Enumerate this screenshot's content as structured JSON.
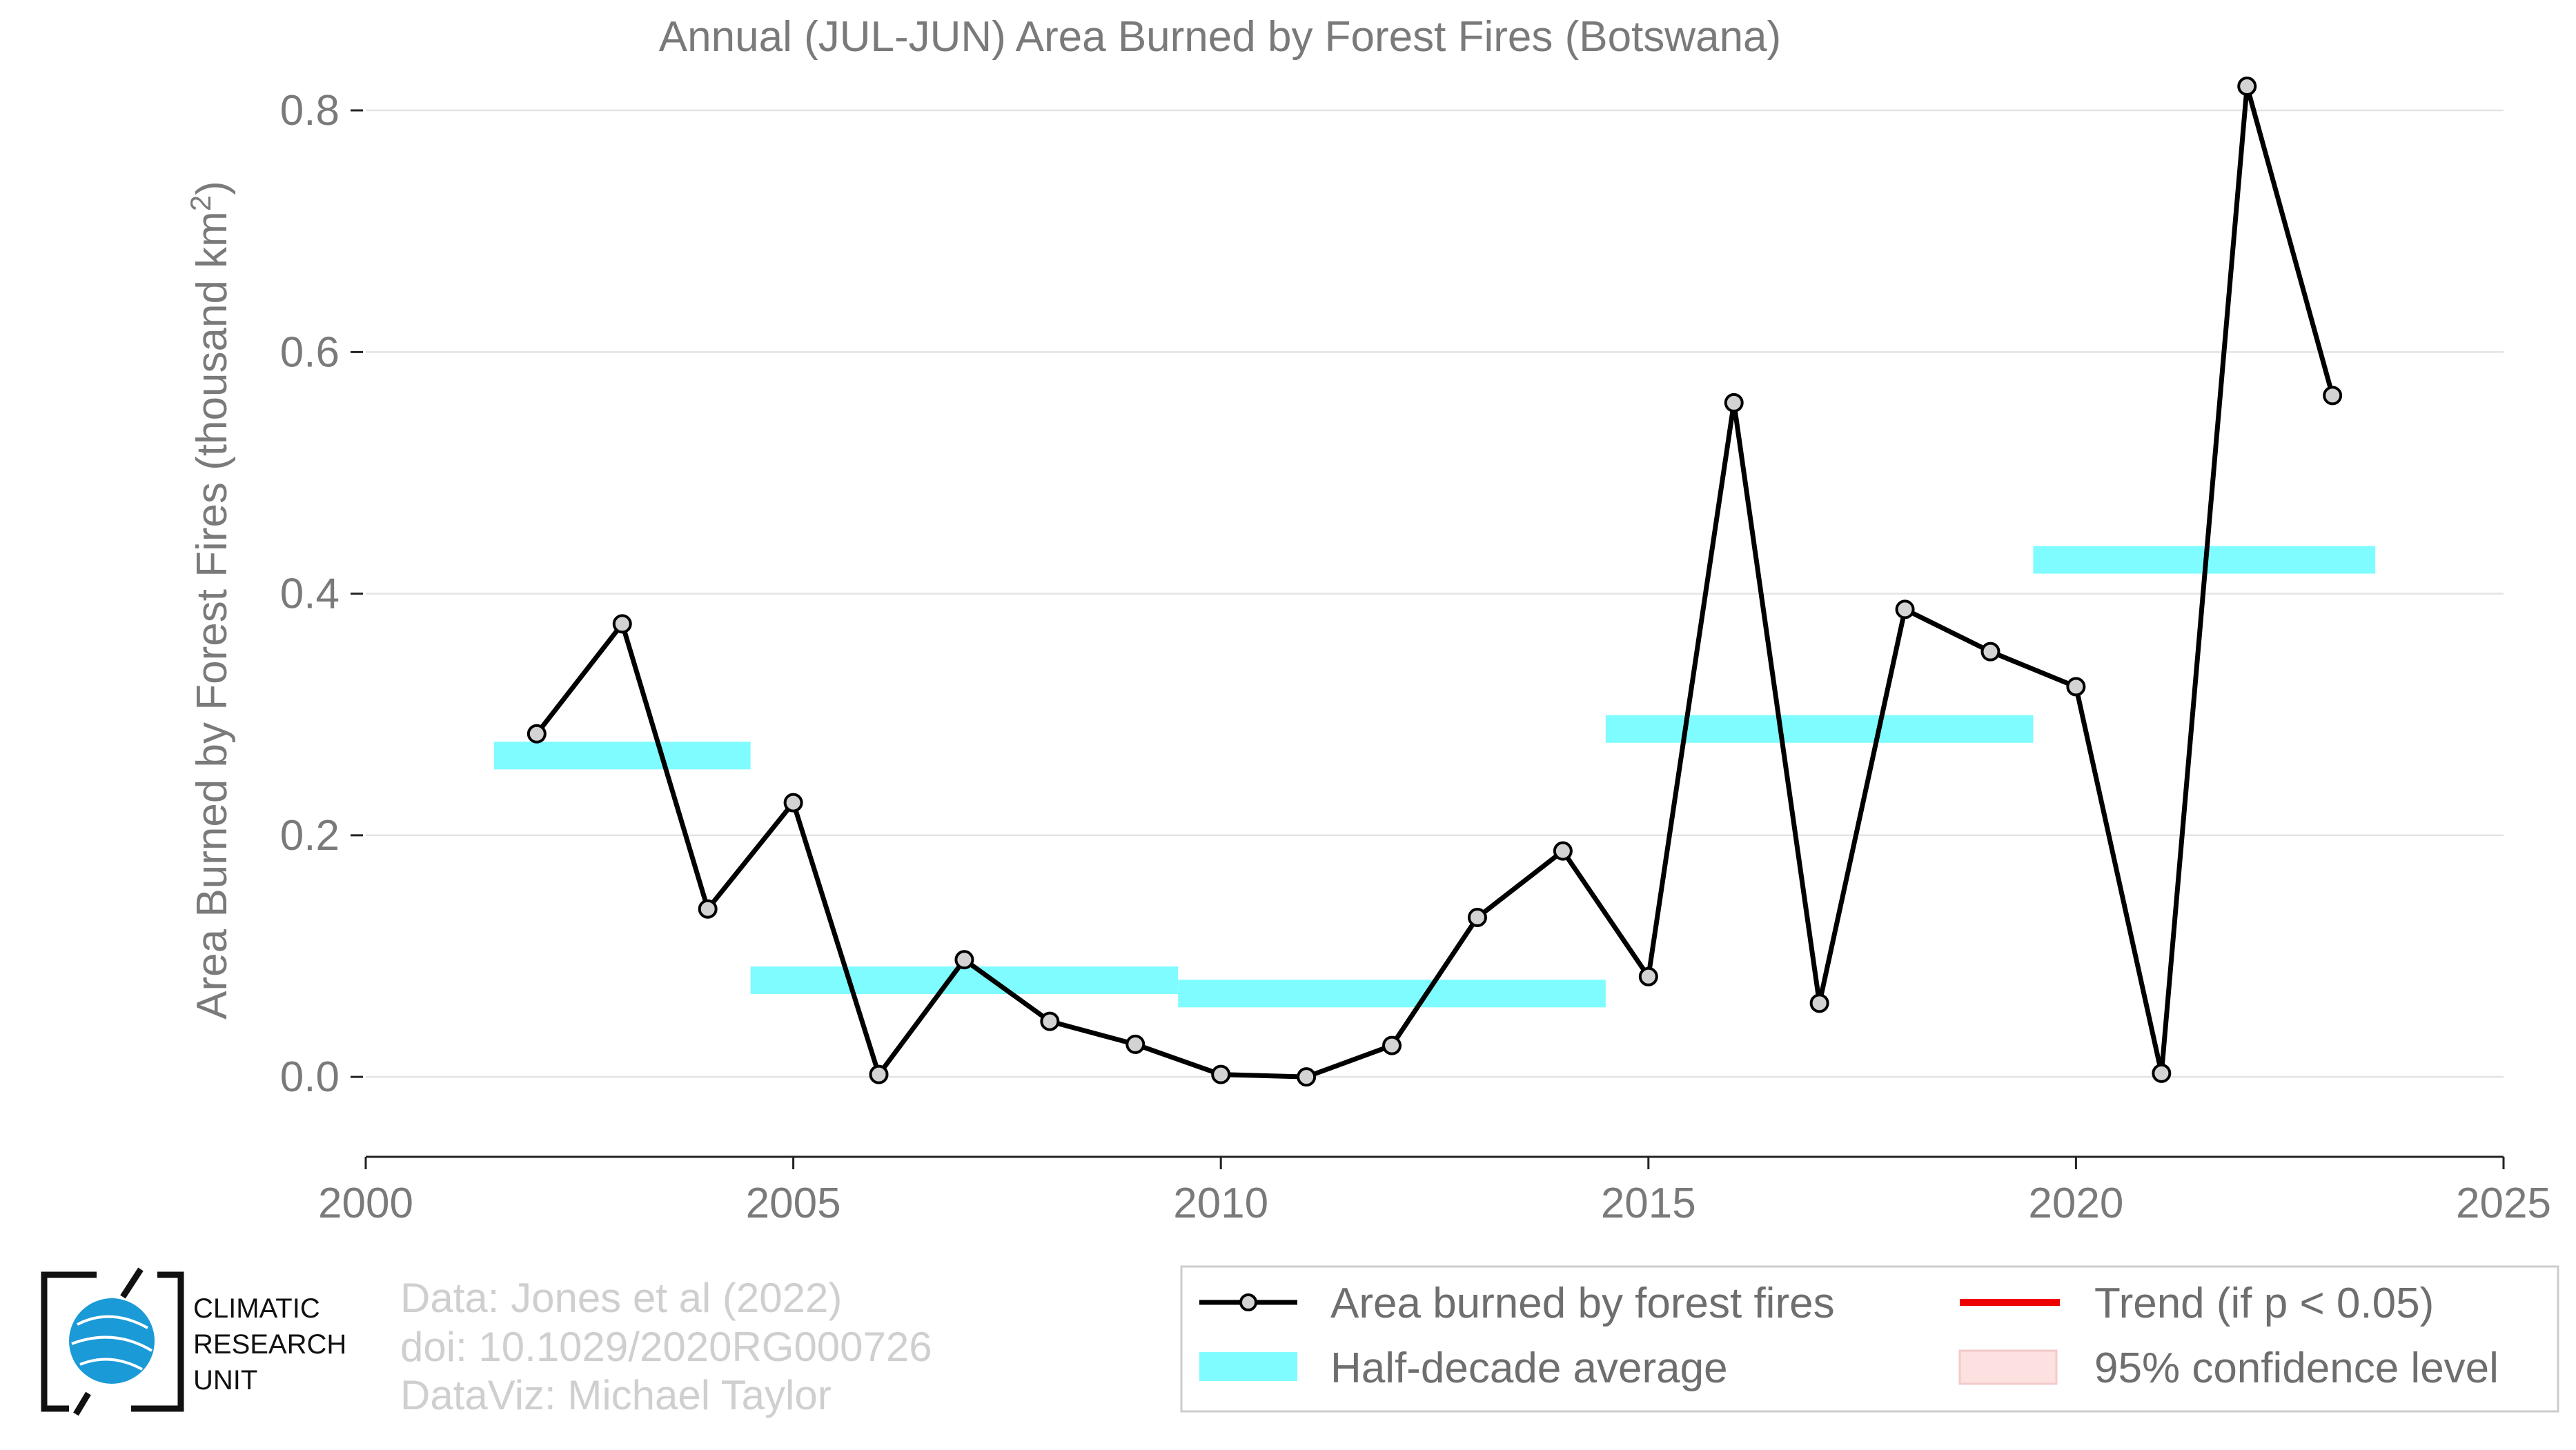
{
  "chart_data": {
    "type": "line",
    "title": "Annual (JUL-JUN) Area Burned by Forest Fires (Botswana)",
    "ylabel": "Area Burned by Forest Fires (thousand km²)",
    "xlabel": "",
    "xlim": [
      2000,
      2025
    ],
    "ylim": [
      -0.065,
      0.84
    ],
    "xticks": [
      2000,
      2005,
      2010,
      2015,
      2020,
      2025
    ],
    "xtick_labels": [
      "2000",
      "2005",
      "2010",
      "2015",
      "2020",
      "2025"
    ],
    "yticks": [
      0.0,
      0.2,
      0.4,
      0.6,
      0.8
    ],
    "ytick_labels": [
      "0.0",
      "0.2",
      "0.4",
      "0.6",
      "0.8"
    ],
    "grid": "horizontal",
    "series": [
      {
        "name": "Area burned by forest fires",
        "color": "#000000",
        "marker_fill": "#d3d3d3",
        "x": [
          2002,
          2003,
          2004,
          2005,
          2006,
          2007,
          2008,
          2009,
          2010,
          2011,
          2012,
          2013,
          2014,
          2015,
          2016,
          2017,
          2018,
          2019,
          2020,
          2021,
          2022,
          2023
        ],
        "y": [
          0.284,
          0.375,
          0.139,
          0.227,
          0.002,
          0.097,
          0.046,
          0.027,
          0.002,
          0.0,
          0.026,
          0.132,
          0.187,
          0.083,
          0.558,
          0.061,
          0.387,
          0.352,
          0.323,
          0.003,
          0.82,
          0.564
        ]
      }
    ],
    "half_decade_averages": {
      "name": "Half-decade average",
      "color": "#7ffcff",
      "segments": [
        {
          "x_start": 2001.5,
          "x_end": 2004.5,
          "value": 0.266
        },
        {
          "x_start": 2004.5,
          "x_end": 2009.5,
          "value": 0.08
        },
        {
          "x_start": 2009.5,
          "x_end": 2014.5,
          "value": 0.069
        },
        {
          "x_start": 2014.5,
          "x_end": 2019.5,
          "value": 0.288
        },
        {
          "x_start": 2019.5,
          "x_end": 2023.5,
          "value": 0.428
        }
      ]
    },
    "legend": {
      "placement": "bottom-right",
      "entries": [
        {
          "label": "Area burned by forest fires",
          "kind": "line-marker",
          "color": "#000000"
        },
        {
          "label": "Trend (if p < 0.05)",
          "kind": "line",
          "color": "#ee0000"
        },
        {
          "label": "Half-decade average",
          "kind": "band",
          "color": "#7ffcff"
        },
        {
          "label": "95% confidence level",
          "kind": "band",
          "color": "#fde0e0"
        }
      ]
    }
  },
  "credits": {
    "line1": "Data: Jones et al (2022)",
    "line2": "doi: 10.1029/2020RG000726",
    "line3": "DataViz: Michael Taylor"
  },
  "logo": {
    "line1": "CLIMATIC",
    "line2": "RESEARCH",
    "line3": "UNIT",
    "globe_color": "#1a9ad6"
  }
}
